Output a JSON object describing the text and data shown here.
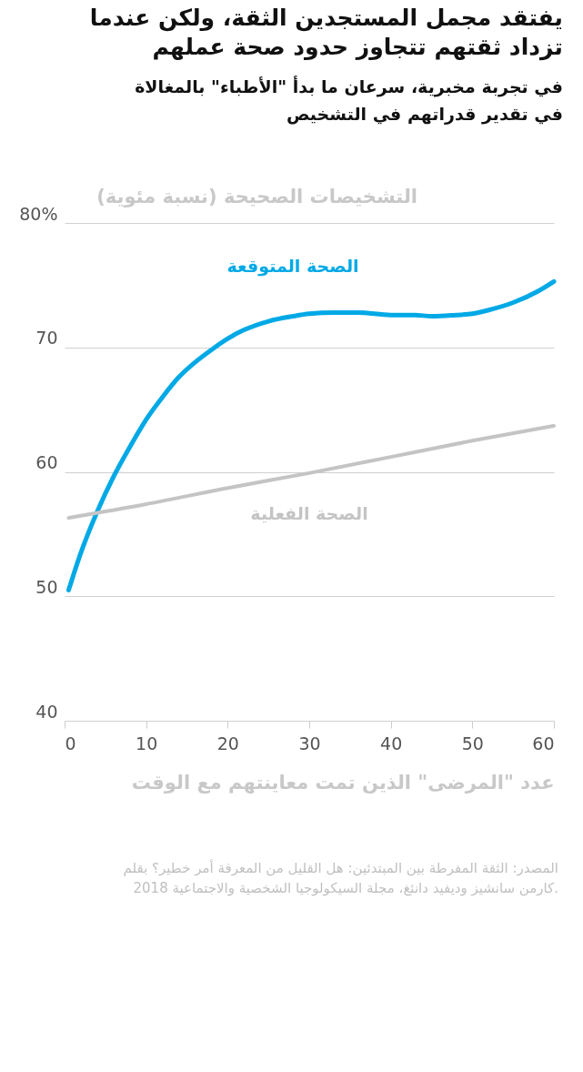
{
  "chart_data": {
    "type": "line",
    "title": "يفتقد مجمل المستجدين الثقة، ولكن عندما\nتزداد ثقتهم تتجاوز حدود صحة عملهم",
    "subtitle": "في تجربة مخبرية، سرعان ما بدأ \"الأطباء\" بالمغالاة\nفي تقدير قدراتهم في التشخيص",
    "ylabel": "التشخيصات الصحيحة (نسبة مئوية)",
    "xlabel": "عدد \"المرضى\" الذين تمت معاينتهم مع الوقت",
    "annotations": [
      "المصدر: الثقة المفرطة بين المبتدئين: هل القليل من المعرفة أمر خطير؟ بقلم\nكارمن سانشيز وديفيد دانئغ، مجلة السيكولوجيا الشخصية والاجتماعية 2018."
    ],
    "xlim": [
      0,
      60
    ],
    "xticks": [
      0,
      10,
      20,
      30,
      40,
      50,
      60
    ],
    "ylim": [
      40,
      80
    ],
    "yticks": [
      40,
      50,
      60,
      70,
      {
        "value": 80,
        "label": "80%"
      }
    ],
    "grid": "y",
    "legend": false,
    "line_style": "solid",
    "marker": "none",
    "series": [
      {
        "name": "الصحة المتوقعة",
        "color": "#00a9e6",
        "x": [
          0.5,
          2,
          4,
          6,
          8,
          10,
          12,
          14,
          16,
          18,
          20,
          22,
          25,
          28,
          30,
          33,
          36,
          40,
          43,
          45,
          48,
          50,
          52,
          55,
          58,
          60
        ],
        "values": [
          50.5,
          53.5,
          56.8,
          59.6,
          62,
          64.2,
          66,
          67.6,
          68.8,
          69.8,
          70.7,
          71.4,
          72.1,
          72.5,
          72.7,
          72.8,
          72.8,
          72.6,
          72.6,
          72.5,
          72.6,
          72.7,
          73,
          73.6,
          74.5,
          75.3
        ]
      },
      {
        "name": "الصحة الفعلية",
        "color": "#c4c4c4",
        "x": [
          0.5,
          10,
          20,
          30,
          40,
          50,
          60
        ],
        "values": [
          56.3,
          57.4,
          58.7,
          59.9,
          61.2,
          62.5,
          63.7
        ]
      }
    ]
  }
}
